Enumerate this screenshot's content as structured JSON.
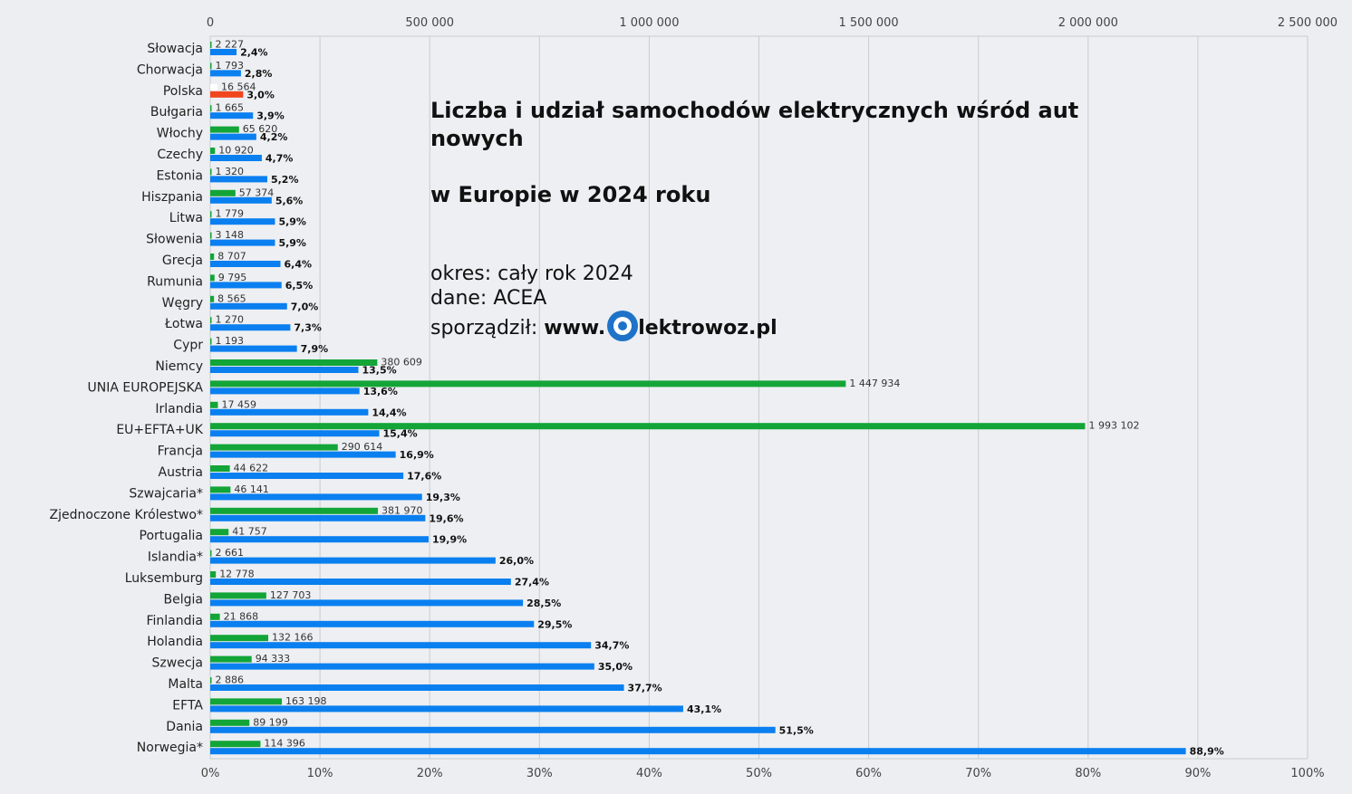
{
  "chart_data": {
    "type": "bar",
    "title_lines": [
      "Liczba i udział samochodów elektrycznych wśród aut nowych",
      "w Europie w 2024 roku"
    ],
    "period": "okres: cały rok 2024",
    "source": "dane: ACEA",
    "author_prefix": "sporządził: ",
    "author_brand_start": "www.",
    "author_brand_end": "lektrowoz.pl",
    "count_axis": {
      "min": 0,
      "max": 2500000,
      "position": "top",
      "tick_labels": [
        "0",
        "500 000",
        "1 000 000",
        "1 500 000",
        "2 000 000",
        "2 500 000"
      ]
    },
    "share_axis": {
      "min": 0,
      "max": 100,
      "unit": "%",
      "position": "bottom",
      "tick_labels": [
        "0%",
        "10%",
        "20%",
        "30%",
        "40%",
        "50%",
        "60%",
        "70%",
        "80%",
        "90%",
        "100%"
      ]
    },
    "grid": true,
    "colors": {
      "count": "#13a538",
      "share": "#0a7ff0",
      "highlight": "#f0451d",
      "grid": "#c9ccd0"
    },
    "highlight_category": "Polska",
    "categories": [
      "Słowacja",
      "Chorwacja",
      "Polska",
      "Bułgaria",
      "Włochy",
      "Czechy",
      "Estonia",
      "Hiszpania",
      "Litwa",
      "Słowenia",
      "Grecja",
      "Rumunia",
      "Węgry",
      "Łotwa",
      "Cypr",
      "Niemcy",
      "UNIA EUROPEJSKA",
      "Irlandia",
      "EU+EFTA+UK",
      "Francja",
      "Austria",
      "Szwajcaria*",
      "Zjednoczone Królestwo*",
      "Portugalia",
      "Islandia*",
      "Luksemburg",
      "Belgia",
      "Finlandia",
      "Holandia",
      "Szwecja",
      "Malta",
      "EFTA",
      "Dania",
      "Norwegia*"
    ],
    "series": [
      {
        "name": "",
        "axis": "count",
        "values": [
          2227,
          1793,
          16564,
          1665,
          65620,
          10920,
          1320,
          57374,
          1779,
          3148,
          8707,
          9795,
          8565,
          1270,
          1193,
          380609,
          1447934,
          17459,
          1993102,
          290614,
          44622,
          46141,
          381970,
          41757,
          2661,
          12778,
          127703,
          21868,
          132166,
          94333,
          2886,
          163198,
          89199,
          114396
        ],
        "labels": [
          "2 227",
          "1 793",
          "16 564",
          "1 665",
          "65 620",
          "10 920",
          "1 320",
          "57 374",
          "1 779",
          "3 148",
          "8 707",
          "9 795",
          "8 565",
          "1 270",
          "1 193",
          "380 609",
          "1 447 934",
          "17 459",
          "1 993 102",
          "290 614",
          "44 622",
          "46 141",
          "381 970",
          "41 757",
          "2 661",
          "12 778",
          "127 703",
          "21 868",
          "132 166",
          "94 333",
          "2 886",
          "163 198",
          "89 199",
          "114 396"
        ]
      },
      {
        "name": "",
        "axis": "share",
        "values": [
          2.4,
          2.8,
          3.0,
          3.9,
          4.2,
          4.7,
          5.2,
          5.6,
          5.9,
          5.9,
          6.4,
          6.5,
          7.0,
          7.3,
          7.9,
          13.5,
          13.6,
          14.4,
          15.4,
          16.9,
          17.6,
          19.3,
          19.6,
          19.9,
          26.0,
          27.4,
          28.5,
          29.5,
          34.7,
          35.0,
          37.7,
          43.1,
          51.5,
          88.9
        ],
        "labels": [
          "2,4%",
          "2,8%",
          "3,0%",
          "3,9%",
          "4,2%",
          "4,7%",
          "5,2%",
          "5,6%",
          "5,9%",
          "5,9%",
          "6,4%",
          "6,5%",
          "7,0%",
          "7,3%",
          "7,9%",
          "13,5%",
          "13,6%",
          "14,4%",
          "15,4%",
          "16,9%",
          "17,6%",
          "19,3%",
          "19,6%",
          "19,9%",
          "26,0%",
          "27,4%",
          "28,5%",
          "29,5%",
          "34,7%",
          "35,0%",
          "37,7%",
          "43,1%",
          "51,5%",
          "88,9%"
        ]
      }
    ]
  }
}
